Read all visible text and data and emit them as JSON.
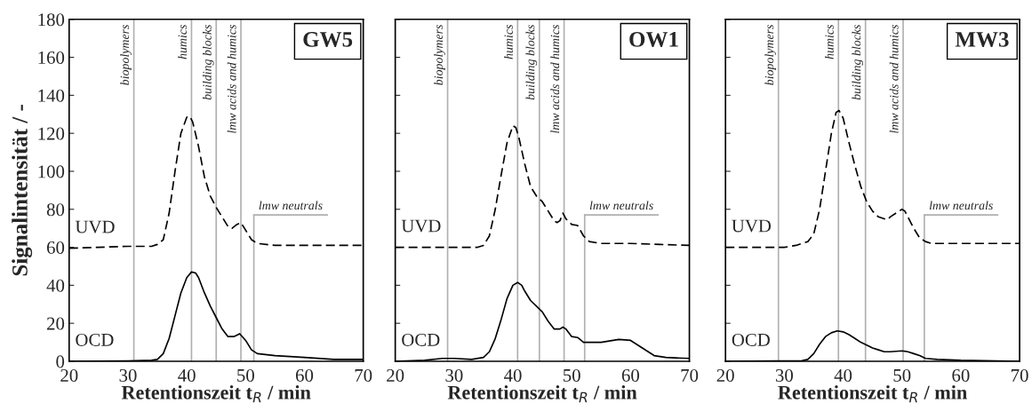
{
  "chart_data": [
    {
      "type": "line",
      "title": "GW5",
      "xlabel": "Retentionszeit t$_{R}$ / min",
      "ylabel": "Signalintensität / -",
      "xlim": [
        20,
        70
      ],
      "xticks": [
        20,
        30,
        40,
        50,
        60,
        70
      ],
      "ylim": [
        0,
        180
      ],
      "yticks": [
        0,
        20,
        40,
        60,
        80,
        100,
        120,
        140,
        160,
        180
      ],
      "grid": false,
      "legend": false,
      "series": [
        {
          "name": "UVD",
          "color": "#000000",
          "line_style": "dashed",
          "x": [
            20,
            25,
            30,
            34,
            35,
            36,
            37,
            38,
            39,
            40,
            40.5,
            41,
            42,
            43,
            44,
            45,
            46,
            47,
            47.7,
            48.5,
            49.2,
            50,
            51,
            52,
            55,
            60,
            65,
            70
          ],
          "values": [
            59.5,
            60,
            60.5,
            60.5,
            61.5,
            64,
            78,
            100,
            120,
            128.5,
            129,
            126,
            113,
            97,
            87,
            81,
            76,
            71,
            70,
            72,
            73,
            69,
            64,
            62,
            61,
            61,
            61,
            61
          ]
        },
        {
          "name": "OCD",
          "color": "#000000",
          "line_style": "solid",
          "x": [
            20,
            30,
            34,
            35,
            36,
            37,
            38,
            39,
            40,
            40.8,
            41.5,
            42,
            43,
            44,
            45,
            46,
            47,
            48,
            49,
            50,
            51,
            52,
            55,
            60,
            65,
            70
          ],
          "values": [
            0,
            0.2,
            0.5,
            1,
            4,
            12,
            24,
            36,
            44,
            47,
            46.5,
            44,
            36,
            29,
            23,
            17,
            13,
            13,
            14.5,
            11,
            6,
            4,
            3,
            2,
            1,
            1
          ]
        }
      ],
      "ref_lines": [
        {
          "axis": "x",
          "value": 31,
          "label": "biopolymers",
          "color": "#b0b0b0"
        },
        {
          "axis": "x",
          "value": 40.8,
          "label": "humics",
          "color": "#b0b0b0"
        },
        {
          "axis": "x",
          "value": 45,
          "label": "building blocks",
          "color": "#b0b0b0"
        },
        {
          "axis": "x",
          "value": 49.2,
          "label": "lmw acids and humics",
          "color": "#b0b0b0"
        },
        {
          "axis": "x",
          "value": 51.4,
          "label": "lmw neutrals",
          "color": "#b0b0b0"
        }
      ]
    },
    {
      "type": "line",
      "title": "OW1",
      "xlabel": "Retentionszeit t$_{R}$ / min",
      "xlim": [
        20,
        70
      ],
      "xticks": [
        20,
        30,
        40,
        50,
        60,
        70
      ],
      "ylim": [
        0,
        180
      ],
      "yticks": [
        0,
        20,
        40,
        60,
        80,
        100,
        120,
        140,
        160,
        180
      ],
      "tick_labels": "x",
      "grid": false,
      "legend": false,
      "series": [
        {
          "name": "UVD",
          "color": "#000000",
          "line_style": "dashed",
          "x": [
            20,
            30,
            34,
            35,
            36,
            37,
            38,
            39,
            40,
            40.5,
            41,
            42,
            43,
            44,
            45,
            46,
            47,
            47.5,
            48,
            48.5,
            49,
            50,
            51,
            52,
            53,
            55,
            60,
            65,
            70
          ],
          "values": [
            60,
            60,
            60,
            61,
            66,
            80,
            98,
            115,
            124,
            123,
            118,
            104,
            92,
            87,
            84,
            79,
            74,
            73,
            74,
            78,
            75,
            72,
            71.5,
            66,
            63,
            62,
            62,
            61.5,
            61
          ]
        },
        {
          "name": "OCD",
          "color": "#000000",
          "line_style": "solid",
          "x": [
            20,
            25,
            28,
            30,
            33,
            35,
            36,
            37,
            38,
            39,
            40,
            40.8,
            41.5,
            42,
            43,
            44,
            45,
            46,
            47,
            48,
            48.5,
            49,
            50,
            51,
            52,
            53,
            55,
            58,
            60,
            62,
            64,
            66,
            70
          ],
          "values": [
            0,
            0.5,
            1.5,
            1.5,
            1,
            2,
            5,
            12,
            22,
            33,
            40,
            41.5,
            40,
            37,
            32,
            29,
            26,
            21,
            17,
            17,
            18,
            17,
            13,
            12.5,
            10,
            10,
            10,
            11.5,
            11,
            7,
            3,
            2,
            1.5
          ]
        }
      ],
      "ref_lines": [
        {
          "axis": "x",
          "value": 28.9,
          "label": "biopolymers",
          "color": "#b0b0b0"
        },
        {
          "axis": "x",
          "value": 40.8,
          "label": "humics",
          "color": "#b0b0b0"
        },
        {
          "axis": "x",
          "value": 44.5,
          "label": "building blocks",
          "color": "#b0b0b0"
        },
        {
          "axis": "x",
          "value": 48.7,
          "label": "lmw acids and humics",
          "color": "#b0b0b0"
        },
        {
          "axis": "x",
          "value": 52.2,
          "label": "lmw neutrals",
          "color": "#b0b0b0"
        }
      ]
    },
    {
      "type": "line",
      "title": "MW3",
      "xlabel": "Retentionszeit t$_{R}$ / min",
      "xlim": [
        20,
        70
      ],
      "xticks": [
        20,
        30,
        40,
        50,
        60,
        70
      ],
      "ylim": [
        0,
        180
      ],
      "yticks": [
        0,
        20,
        40,
        60,
        80,
        100,
        120,
        140,
        160,
        180
      ],
      "tick_labels": "x",
      "grid": false,
      "legend": false,
      "series": [
        {
          "name": "UVD",
          "color": "#000000",
          "line_style": "dashed",
          "x": [
            20,
            30,
            32,
            34,
            35,
            36,
            37,
            38,
            38.8,
            39.3,
            40,
            41,
            42,
            43,
            44,
            45,
            46,
            47,
            47.5,
            48,
            49,
            50,
            50.5,
            51,
            52,
            53,
            54,
            55,
            60,
            70
          ],
          "values": [
            60,
            60,
            61,
            63,
            67,
            80,
            100,
            120,
            131,
            132,
            128,
            115,
            103,
            92,
            84,
            79,
            76,
            75,
            74.5,
            76,
            78,
            80,
            79,
            76,
            70,
            65,
            63,
            62,
            62,
            62
          ]
        },
        {
          "name": "OCD",
          "color": "#000000",
          "line_style": "solid",
          "x": [
            20,
            33,
            34,
            35,
            36,
            37,
            38,
            39,
            40,
            41,
            42,
            43,
            44,
            45,
            46,
            47,
            48,
            50,
            51,
            52,
            53,
            54,
            56,
            60,
            70
          ],
          "values": [
            0,
            0.3,
            1,
            4,
            9,
            13,
            15,
            16,
            15.5,
            14,
            12,
            10,
            8.5,
            7,
            6,
            5,
            5,
            5.5,
            5,
            4,
            3,
            1.5,
            1,
            0.5,
            0
          ]
        }
      ],
      "ref_lines": [
        {
          "axis": "x",
          "value": 29,
          "label": "biopolymers",
          "color": "#b0b0b0"
        },
        {
          "axis": "x",
          "value": 39.2,
          "label": "humics",
          "color": "#b0b0b0"
        },
        {
          "axis": "x",
          "value": 43.8,
          "label": "building blocks",
          "color": "#b0b0b0"
        },
        {
          "axis": "x",
          "value": 50.2,
          "label": "lmw acids and humics",
          "color": "#b0b0b0"
        },
        {
          "axis": "x",
          "value": 53.8,
          "label": "lmw neutrals",
          "color": "#b0b0b0"
        }
      ]
    }
  ]
}
